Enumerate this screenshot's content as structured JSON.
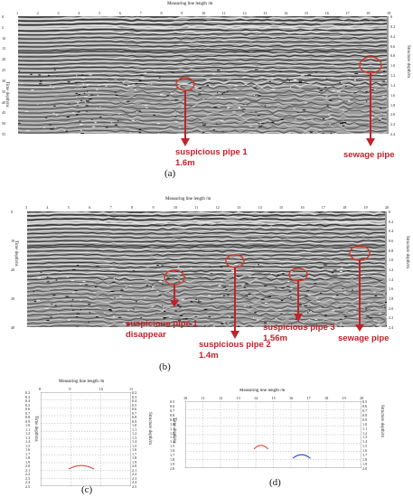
{
  "figure": {
    "panels": [
      {
        "id": "a",
        "caption": "(a)",
        "x_axis_title": "Measuring line length /m",
        "left_axis_title": "Time depth/ns",
        "right_axis_title": "Structure depth/m",
        "x_ticks": [
          "1",
          "2",
          "3",
          "4",
          "5",
          "6",
          "7",
          "8",
          "9",
          "10",
          "11",
          "12",
          "13",
          "14",
          "15",
          "16",
          "17",
          "18",
          "19"
        ],
        "left_ticks": [
          "0",
          "5",
          "10",
          "15",
          "20",
          "25",
          "30",
          "35",
          "40",
          "45",
          "50",
          "55"
        ],
        "right_ticks": [
          "0",
          "0.2",
          "0.4",
          "0.6",
          "0.8",
          "1.0",
          "1.2",
          "1.4",
          "1.6",
          "1.8",
          "2.0",
          "2.2",
          "2.4"
        ],
        "annotations": [
          {
            "lines": [
              "suspicious pipe 1",
              "1.6m"
            ]
          },
          {
            "lines": [
              "sewage pipe"
            ]
          }
        ]
      },
      {
        "id": "b",
        "caption": "(b)",
        "x_axis_title": "Measuring line length /m",
        "left_axis_title": "Time depth/ns",
        "right_axis_title": "Structure depth/m",
        "x_ticks": [
          "3",
          "4",
          "5",
          "6",
          "7",
          "8",
          "9",
          "10",
          "11",
          "12",
          "13",
          "14",
          "15",
          "16",
          "17",
          "18",
          "19",
          "20"
        ],
        "left_ticks": [
          "0",
          "10",
          "20",
          "30",
          "40"
        ],
        "right_ticks": [
          "0",
          "0.2",
          "0.4",
          "0.6",
          "0.8",
          "1.0",
          "1.2",
          "1.4",
          "1.6",
          "1.8",
          "2.0",
          "2.2",
          "2.4"
        ],
        "annotations": [
          {
            "lines": [
              "suspicious pipe 1",
              "disappear"
            ]
          },
          {
            "lines": [
              "suspicious pipe 2",
              "1.4m"
            ]
          },
          {
            "lines": [
              "suspicious pipe 3",
              "1.56m"
            ]
          },
          {
            "lines": [
              "sewage pipe"
            ]
          }
        ]
      },
      {
        "id": "c",
        "caption": "(c)",
        "x_axis_title": "Measuring line length /m",
        "left_axis_title": "Time depth/ns",
        "right_axis_title": "Structure depth/m",
        "x_ticks": [
          "8",
          "9",
          "10",
          "11"
        ],
        "left_ticks": [
          "0.2",
          "0.3",
          "0.4",
          "0.5",
          "0.6",
          "0.7",
          "0.8",
          "0.9",
          "1.0",
          "1.1",
          "1.2",
          "1.3",
          "1.4",
          "1.5",
          "1.6",
          "1.7",
          "1.8",
          "1.9",
          "2.0",
          "2.1",
          "2.2",
          "2.3",
          "2.4",
          "2.5"
        ],
        "right_ticks": [
          "0.2",
          "0.3",
          "0.4",
          "0.5",
          "0.6",
          "0.7",
          "0.8",
          "0.9",
          "1.0",
          "1.1",
          "1.2",
          "1.3",
          "1.4",
          "1.5",
          "1.6",
          "1.7",
          "1.8",
          "1.9",
          "2.0",
          "2.1",
          "2.2",
          "2.3",
          "2.4",
          "2.5"
        ],
        "curves": [
          {
            "color": "#d13a2a"
          }
        ]
      },
      {
        "id": "d",
        "caption": "(d)",
        "x_axis_title": "Measuring line length /m",
        "left_axis_title": "Time depth/ns",
        "right_axis_title": "Structure depth/m",
        "x_ticks": [
          "10",
          "11",
          "12",
          "13",
          "14",
          "15",
          "16",
          "17",
          "18",
          "19",
          "20"
        ],
        "left_ticks": [
          "0.5",
          "0.6",
          "0.7",
          "0.8",
          "0.9",
          "1.0",
          "1.1",
          "1.2",
          "1.3",
          "1.4",
          "1.5",
          "1.6",
          "1.7",
          "1.8",
          "1.9",
          "2.0"
        ],
        "right_ticks": [
          "0.5",
          "0.6",
          "0.7",
          "0.8",
          "0.9",
          "1.0",
          "1.1",
          "1.2",
          "1.3",
          "1.4",
          "1.5",
          "1.6",
          "1.7",
          "1.8",
          "1.9",
          "2.0"
        ],
        "curves": [
          {
            "color": "#d13a2a"
          },
          {
            "color": "#2a3fd1"
          }
        ]
      }
    ],
    "colors": {
      "annotation": "#c0232a",
      "circle": "#d13a2a",
      "curve_red": "#d13a2a",
      "curve_blue": "#2a3fd1"
    }
  }
}
